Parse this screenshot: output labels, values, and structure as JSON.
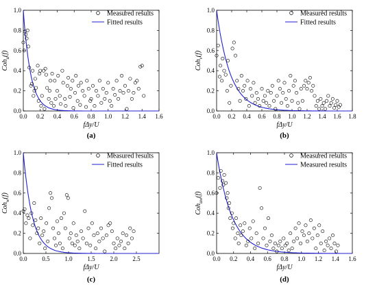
{
  "chart_data": [
    {
      "type": "scatter",
      "panel_label": "(a)",
      "ylabel": "Coh",
      "ylabel_sub": "u",
      "ylabel_suffix": "(f)",
      "xlabel": "fΔy/U",
      "xlim": [
        0.0,
        1.6
      ],
      "ylim": [
        0.0,
        1.0
      ],
      "xticks": [
        "0.0",
        "0.2",
        "0.4",
        "0.6",
        "0.8",
        "1.0",
        "1.2",
        "1.4",
        "1.6"
      ],
      "yticks": [
        "0.0",
        "0.2",
        "0.4",
        "0.6",
        "0.8",
        "1.0"
      ],
      "legend": [
        "Measured results",
        "Fitted results"
      ],
      "legend_position": "top-right",
      "fit_decay": 11.5,
      "series": [
        {
          "name": "Measured results",
          "x": [
            0.0,
            0.01,
            0.02,
            0.03,
            0.04,
            0.05,
            0.06,
            0.07,
            0.09,
            0.1,
            0.11,
            0.12,
            0.13,
            0.14,
            0.15,
            0.17,
            0.18,
            0.19,
            0.2,
            0.21,
            0.22,
            0.24,
            0.25,
            0.26,
            0.27,
            0.28,
            0.3,
            0.31,
            0.32,
            0.33,
            0.34,
            0.36,
            0.37,
            0.38,
            0.4,
            0.41,
            0.43,
            0.44,
            0.46,
            0.47,
            0.49,
            0.5,
            0.52,
            0.53,
            0.55,
            0.56,
            0.58,
            0.59,
            0.61,
            0.62,
            0.64,
            0.65,
            0.67,
            0.68,
            0.7,
            0.72,
            0.74,
            0.75,
            0.77,
            0.79,
            0.8,
            0.82,
            0.84,
            0.86,
            0.88,
            0.9,
            0.92,
            0.94,
            0.96,
            0.98,
            1.0,
            1.02,
            1.04,
            1.06,
            1.08,
            1.1,
            1.12,
            1.14,
            1.16,
            1.18,
            1.2,
            1.22,
            1.24,
            1.26,
            1.28,
            1.3,
            1.32,
            1.34,
            1.36,
            1.38,
            1.4,
            1.42
          ],
          "y": [
            0.68,
            0.6,
            0.79,
            0.76,
            0.72,
            0.8,
            0.64,
            0.43,
            0.25,
            0.27,
            0.4,
            0.15,
            0.2,
            0.32,
            0.23,
            0.45,
            0.1,
            0.37,
            0.4,
            0.05,
            0.15,
            0.4,
            0.02,
            0.42,
            0.36,
            0.23,
            0.12,
            0.2,
            0.3,
            0.08,
            0.37,
            0.05,
            0.3,
            0.12,
            0.2,
            0.35,
            0.15,
            0.07,
            0.4,
            0.28,
            0.12,
            0.05,
            0.25,
            0.33,
            0.14,
            0.22,
            0.3,
            0.03,
            0.18,
            0.35,
            0.1,
            0.25,
            0.06,
            0.28,
            0.2,
            0.15,
            0.04,
            0.3,
            0.22,
            0.1,
            0.12,
            0.25,
            0.05,
            0.2,
            0.15,
            0.3,
            0.08,
            0.22,
            0.12,
            0.18,
            0.28,
            0.1,
            0.05,
            0.22,
            0.16,
            0.3,
            0.12,
            0.2,
            0.35,
            0.18,
            0.25,
            0.02,
            0.2,
            0.32,
            0.12,
            0.18,
            0.28,
            0.3,
            0.22,
            0.44,
            0.45,
            0.15
          ]
        },
        {
          "name": "Fitted results",
          "kind": "exponential fit"
        }
      ]
    },
    {
      "type": "scatter",
      "panel_label": "(b)",
      "ylabel": "Coh",
      "ylabel_sub": "v",
      "ylabel_suffix": "(f)",
      "xlabel": "fΔy/U",
      "xlim": [
        0.0,
        1.8
      ],
      "ylim": [
        0.0,
        1.0
      ],
      "xticks": [
        "0.0",
        "0.2",
        "0.4",
        "0.6",
        "0.8",
        "1.0",
        "1.2",
        "1.4",
        "1.6",
        "1.8"
      ],
      "yticks": [
        "0.0",
        "0.2",
        "0.4",
        "0.6",
        "0.8",
        "1.0"
      ],
      "legend": [
        "Measured results",
        "Fitted results"
      ],
      "legend_position": "top-right",
      "fit_decay": 5.5,
      "series": [
        {
          "name": "Measured results",
          "x": [
            0.0,
            0.02,
            0.04,
            0.05,
            0.07,
            0.08,
            0.1,
            0.12,
            0.14,
            0.15,
            0.17,
            0.19,
            0.21,
            0.23,
            0.25,
            0.27,
            0.29,
            0.31,
            0.33,
            0.35,
            0.37,
            0.39,
            0.41,
            0.43,
            0.45,
            0.47,
            0.49,
            0.51,
            0.53,
            0.55,
            0.57,
            0.6,
            0.62,
            0.64,
            0.66,
            0.68,
            0.7,
            0.72,
            0.74,
            0.76,
            0.78,
            0.8,
            0.82,
            0.84,
            0.86,
            0.88,
            0.9,
            0.92,
            0.94,
            0.96,
            0.98,
            1.0,
            1.02,
            1.04,
            1.06,
            1.08,
            1.1,
            1.12,
            1.14,
            1.16,
            1.18,
            1.2,
            1.22,
            1.24,
            1.26,
            1.28,
            1.3,
            1.32,
            1.34,
            1.36,
            1.38,
            1.4,
            1.42,
            1.44,
            1.46,
            1.48,
            1.5,
            1.52,
            1.54,
            1.56,
            1.58,
            1.6,
            1.62,
            1.64
          ],
          "y": [
            0.55,
            0.65,
            0.34,
            0.45,
            0.3,
            0.52,
            0.4,
            0.36,
            0.2,
            0.5,
            0.08,
            0.25,
            0.62,
            0.68,
            0.55,
            0.3,
            0.22,
            0.1,
            0.35,
            0.2,
            0.25,
            0.12,
            0.3,
            0.05,
            0.22,
            0.15,
            0.28,
            0.08,
            0.18,
            0.12,
            0.05,
            0.22,
            0.1,
            0.15,
            0.08,
            0.2,
            0.05,
            0.18,
            0.25,
            0.1,
            0.02,
            0.15,
            0.3,
            0.22,
            0.08,
            0.18,
            0.28,
            0.12,
            0.05,
            0.2,
            0.35,
            0.1,
            0.25,
            0.3,
            0.18,
            0.08,
            0.02,
            0.22,
            0.1,
            0.25,
            0.3,
            0.22,
            0.28,
            0.33,
            0.2,
            0.25,
            0.15,
            0.05,
            0.1,
            0.02,
            0.12,
            0.05,
            0.08,
            0.02,
            0.1,
            0.15,
            0.05,
            0.08,
            0.12,
            0.03,
            0.06,
            0.1,
            0.04,
            0.06
          ]
        },
        {
          "name": "Fitted results",
          "kind": "exponential fit"
        }
      ]
    },
    {
      "type": "scatter",
      "panel_label": "(c)",
      "ylabel": "Coh",
      "ylabel_sub": "w",
      "ylabel_suffix": "(f)",
      "xlabel": "fΔy/U",
      "xlim": [
        0.0,
        3.0
      ],
      "ylim": [
        0.0,
        1.0
      ],
      "xticks": [
        "0.0",
        "0.5",
        "1.0",
        "1.5",
        "2.0",
        "2.5"
      ],
      "yticks": [
        "0.0",
        "0.2",
        "0.4",
        "0.6",
        "0.8",
        "1.0"
      ],
      "legend": [
        "Measured results",
        "Fitted results"
      ],
      "legend_position": "top-right",
      "fit_decay": 5.0,
      "series": [
        {
          "name": "Measured results",
          "x": [
            0.0,
            0.03,
            0.06,
            0.09,
            0.12,
            0.15,
            0.18,
            0.21,
            0.24,
            0.27,
            0.3,
            0.33,
            0.36,
            0.39,
            0.42,
            0.45,
            0.48,
            0.51,
            0.54,
            0.57,
            0.6,
            0.63,
            0.66,
            0.69,
            0.72,
            0.75,
            0.78,
            0.81,
            0.84,
            0.87,
            0.9,
            0.93,
            0.96,
            0.99,
            1.02,
            1.05,
            1.08,
            1.11,
            1.14,
            1.17,
            1.2,
            1.24,
            1.28,
            1.32,
            1.36,
            1.4,
            1.44,
            1.48,
            1.52,
            1.56,
            1.6,
            1.64,
            1.68,
            1.72,
            1.76,
            1.8,
            1.84,
            1.88,
            1.92,
            1.96,
            2.0,
            2.04,
            2.08,
            2.12,
            2.16,
            2.2,
            2.24,
            2.28,
            2.32,
            2.36,
            2.4,
            2.44
          ],
          "y": [
            0.42,
            0.44,
            0.3,
            0.38,
            0.35,
            0.15,
            0.4,
            0.28,
            0.5,
            0.33,
            0.2,
            0.25,
            0.1,
            0.35,
            0.18,
            0.22,
            0.05,
            0.3,
            0.12,
            0.45,
            0.6,
            0.55,
            0.25,
            0.15,
            0.08,
            0.32,
            0.2,
            0.1,
            0.35,
            0.05,
            0.4,
            0.25,
            0.58,
            0.55,
            0.15,
            0.2,
            0.1,
            0.3,
            0.08,
            0.18,
            0.12,
            0.05,
            0.22,
            0.15,
            0.42,
            0.1,
            0.25,
            0.08,
            0.3,
            0.18,
            0.05,
            0.2,
            0.12,
            0.25,
            0.15,
            0.02,
            0.18,
            0.28,
            0.3,
            0.22,
            0.1,
            0.05,
            0.15,
            0.08,
            0.12,
            0.2,
            0.05,
            0.18,
            0.1,
            0.25,
            0.15,
            0.22
          ]
        },
        {
          "name": "Fitted results",
          "kind": "exponential fit"
        }
      ]
    },
    {
      "type": "scatter",
      "panel_label": "(d)",
      "ylabel": "Coh",
      "ylabel_sub": "uw",
      "ylabel_suffix": "(f)",
      "xlabel": "fΔy/U",
      "xlim": [
        0.0,
        1.6
      ],
      "ylim": [
        0.0,
        1.0
      ],
      "xticks": [
        "0.0",
        "0.2",
        "0.4",
        "0.6",
        "0.8",
        "1.0",
        "1.2",
        "1.4",
        "1.6"
      ],
      "yticks": [
        "0.0",
        "0.2",
        "0.4",
        "0.6",
        "0.8",
        "1.0"
      ],
      "legend": [
        "Measured results",
        "Measured results"
      ],
      "legend_position": "top-right",
      "fit_decay": 5.5,
      "series": [
        {
          "name": "Measured results",
          "x": [
            0.0,
            0.02,
            0.04,
            0.05,
            0.07,
            0.08,
            0.09,
            0.11,
            0.12,
            0.13,
            0.14,
            0.15,
            0.16,
            0.18,
            0.19,
            0.2,
            0.22,
            0.23,
            0.25,
            0.26,
            0.28,
            0.29,
            0.31,
            0.33,
            0.35,
            0.37,
            0.39,
            0.41,
            0.43,
            0.45,
            0.47,
            0.49,
            0.51,
            0.53,
            0.55,
            0.57,
            0.59,
            0.61,
            0.63,
            0.65,
            0.67,
            0.69,
            0.71,
            0.73,
            0.75,
            0.77,
            0.79,
            0.81,
            0.83,
            0.85,
            0.87,
            0.89,
            0.91,
            0.93,
            0.95,
            0.97,
            0.99,
            1.01,
            1.03,
            1.05,
            1.07,
            1.09,
            1.11,
            1.13,
            1.15,
            1.17,
            1.19,
            1.21,
            1.23,
            1.25,
            1.27,
            1.29,
            1.31,
            1.33,
            1.35,
            1.37,
            1.39,
            1.41,
            1.43
          ],
          "y": [
            0.6,
            0.75,
            0.65,
            0.82,
            0.72,
            0.68,
            0.78,
            0.7,
            0.55,
            0.6,
            0.45,
            0.5,
            0.35,
            0.4,
            0.25,
            0.3,
            0.15,
            0.35,
            0.2,
            0.1,
            0.28,
            0.18,
            0.22,
            0.3,
            0.08,
            0.12,
            0.25,
            0.15,
            0.32,
            0.05,
            0.2,
            0.1,
            0.65,
            0.45,
            0.15,
            0.25,
            0.08,
            0.35,
            0.12,
            0.18,
            0.05,
            0.1,
            0.02,
            0.08,
            0.12,
            0.05,
            0.15,
            0.08,
            0.1,
            0.03,
            0.2,
            0.05,
            0.12,
            0.25,
            0.15,
            0.3,
            0.1,
            0.22,
            0.18,
            0.28,
            0.12,
            0.2,
            0.33,
            0.15,
            0.25,
            0.05,
            0.18,
            0.28,
            0.1,
            0.22,
            0.03,
            0.12,
            0.08,
            0.15,
            0.05,
            0.18,
            0.1,
            0.02,
            0.08
          ]
        },
        {
          "name": "Measured results",
          "kind": "exponential fit"
        }
      ]
    }
  ]
}
